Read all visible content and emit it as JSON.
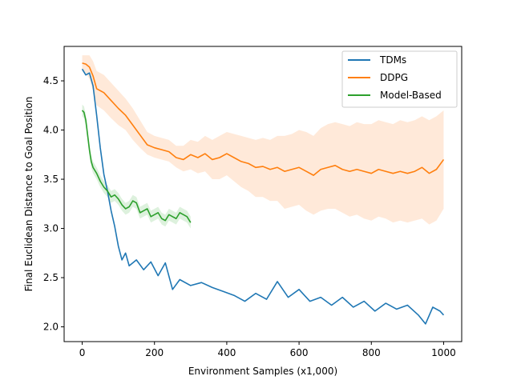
{
  "chart_data": {
    "type": "line",
    "title": "",
    "xlabel": "Environment Samples (x1,000)",
    "ylabel": "Final Euclidean Distance to Goal Position",
    "xlim": [
      -50,
      1050
    ],
    "ylim": [
      1.85,
      4.85
    ],
    "xticks": [
      0,
      200,
      400,
      600,
      800,
      1000
    ],
    "yticks": [
      2.0,
      2.5,
      3.0,
      3.5,
      4.0,
      4.5
    ],
    "xtick_labels": [
      "0",
      "200",
      "400",
      "600",
      "800",
      "1000"
    ],
    "ytick_labels": [
      "2.0",
      "2.5",
      "3.0",
      "3.5",
      "4.0",
      "4.5"
    ],
    "grid": false,
    "legend": {
      "placement": "top-right"
    },
    "series": [
      {
        "name": "TDMs",
        "color": "#1f77b4",
        "x": [
          0,
          10,
          20,
          30,
          40,
          50,
          60,
          70,
          80,
          90,
          100,
          110,
          120,
          130,
          150,
          170,
          190,
          210,
          230,
          250,
          270,
          300,
          330,
          360,
          390,
          420,
          450,
          480,
          510,
          540,
          570,
          600,
          630,
          660,
          690,
          720,
          750,
          780,
          810,
          840,
          870,
          900,
          930,
          950,
          970,
          990,
          1000
        ],
        "y": [
          4.62,
          4.56,
          4.58,
          4.45,
          4.15,
          3.82,
          3.55,
          3.38,
          3.18,
          3.02,
          2.82,
          2.68,
          2.75,
          2.62,
          2.68,
          2.58,
          2.66,
          2.52,
          2.65,
          2.38,
          2.48,
          2.42,
          2.45,
          2.4,
          2.36,
          2.32,
          2.26,
          2.34,
          2.28,
          2.46,
          2.3,
          2.38,
          2.26,
          2.3,
          2.22,
          2.3,
          2.2,
          2.26,
          2.16,
          2.24,
          2.18,
          2.22,
          2.12,
          2.03,
          2.2,
          2.16,
          2.12
        ]
      },
      {
        "name": "DDPG",
        "color": "#ff7f0e",
        "band_color": "#ffe4cf",
        "x": [
          0,
          10,
          20,
          30,
          40,
          60,
          80,
          100,
          120,
          140,
          160,
          180,
          200,
          220,
          240,
          260,
          280,
          300,
          320,
          340,
          360,
          380,
          400,
          420,
          440,
          460,
          480,
          500,
          520,
          540,
          560,
          580,
          600,
          620,
          640,
          660,
          680,
          700,
          720,
          740,
          760,
          780,
          800,
          820,
          840,
          860,
          880,
          900,
          920,
          940,
          960,
          980,
          1000
        ],
        "y": [
          4.68,
          4.67,
          4.64,
          4.55,
          4.42,
          4.38,
          4.3,
          4.22,
          4.15,
          4.05,
          3.95,
          3.85,
          3.82,
          3.8,
          3.78,
          3.72,
          3.7,
          3.75,
          3.72,
          3.76,
          3.7,
          3.72,
          3.76,
          3.72,
          3.68,
          3.66,
          3.62,
          3.63,
          3.6,
          3.62,
          3.58,
          3.6,
          3.62,
          3.58,
          3.54,
          3.6,
          3.62,
          3.64,
          3.6,
          3.58,
          3.6,
          3.58,
          3.56,
          3.6,
          3.58,
          3.56,
          3.58,
          3.56,
          3.58,
          3.62,
          3.56,
          3.6,
          3.7
        ],
        "lower": [
          4.6,
          4.58,
          4.52,
          4.4,
          4.25,
          4.2,
          4.12,
          4.05,
          4.0,
          3.9,
          3.82,
          3.75,
          3.72,
          3.7,
          3.68,
          3.62,
          3.58,
          3.6,
          3.56,
          3.58,
          3.5,
          3.5,
          3.54,
          3.48,
          3.42,
          3.38,
          3.32,
          3.32,
          3.28,
          3.28,
          3.2,
          3.22,
          3.24,
          3.18,
          3.14,
          3.18,
          3.2,
          3.2,
          3.16,
          3.12,
          3.14,
          3.1,
          3.08,
          3.12,
          3.1,
          3.06,
          3.08,
          3.06,
          3.08,
          3.1,
          3.04,
          3.08,
          3.2
        ],
        "upper": [
          4.76,
          4.76,
          4.76,
          4.7,
          4.6,
          4.56,
          4.48,
          4.4,
          4.32,
          4.22,
          4.1,
          3.98,
          3.94,
          3.92,
          3.9,
          3.84,
          3.84,
          3.9,
          3.88,
          3.94,
          3.9,
          3.94,
          3.98,
          3.96,
          3.94,
          3.92,
          3.9,
          3.92,
          3.9,
          3.94,
          3.94,
          3.96,
          4.0,
          3.98,
          3.94,
          4.02,
          4.06,
          4.08,
          4.06,
          4.04,
          4.08,
          4.06,
          4.06,
          4.1,
          4.08,
          4.06,
          4.1,
          4.08,
          4.1,
          4.14,
          4.1,
          4.14,
          4.2
        ]
      },
      {
        "name": "Model-Based",
        "color": "#2ca02c",
        "band_color": "#d4edd4",
        "x": [
          0,
          5,
          10,
          15,
          20,
          25,
          30,
          40,
          50,
          60,
          70,
          80,
          90,
          100,
          110,
          120,
          130,
          140,
          150,
          160,
          170,
          180,
          190,
          200,
          210,
          220,
          230,
          240,
          250,
          260,
          270,
          280,
          290,
          300
        ],
        "y": [
          4.2,
          4.18,
          4.1,
          3.95,
          3.8,
          3.68,
          3.62,
          3.56,
          3.48,
          3.42,
          3.38,
          3.32,
          3.34,
          3.3,
          3.24,
          3.2,
          3.22,
          3.28,
          3.26,
          3.16,
          3.18,
          3.2,
          3.12,
          3.14,
          3.16,
          3.1,
          3.08,
          3.14,
          3.12,
          3.1,
          3.16,
          3.14,
          3.12,
          3.06
        ],
        "lower": [
          4.14,
          4.12,
          4.04,
          3.89,
          3.74,
          3.62,
          3.56,
          3.5,
          3.42,
          3.36,
          3.32,
          3.26,
          3.28,
          3.24,
          3.18,
          3.14,
          3.16,
          3.22,
          3.2,
          3.1,
          3.12,
          3.14,
          3.06,
          3.08,
          3.1,
          3.04,
          3.02,
          3.08,
          3.06,
          3.04,
          3.1,
          3.08,
          3.06,
          3.0
        ],
        "upper": [
          4.26,
          4.24,
          4.16,
          4.01,
          3.86,
          3.74,
          3.68,
          3.62,
          3.54,
          3.48,
          3.44,
          3.38,
          3.4,
          3.36,
          3.3,
          3.26,
          3.28,
          3.34,
          3.32,
          3.22,
          3.24,
          3.26,
          3.18,
          3.2,
          3.22,
          3.16,
          3.14,
          3.2,
          3.18,
          3.16,
          3.22,
          3.2,
          3.18,
          3.12
        ]
      }
    ]
  }
}
